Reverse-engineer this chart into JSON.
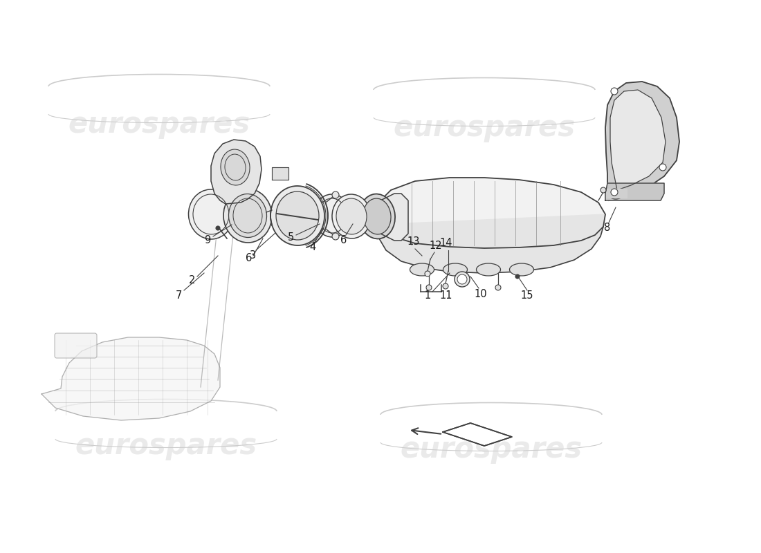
{
  "background_color": "#ffffff",
  "line_color": "#404040",
  "light_line_color": "#909090",
  "watermark_color": "#cccccc",
  "watermark_text": "eurospares",
  "figsize": [
    11.0,
    8.0
  ],
  "dpi": 100
}
